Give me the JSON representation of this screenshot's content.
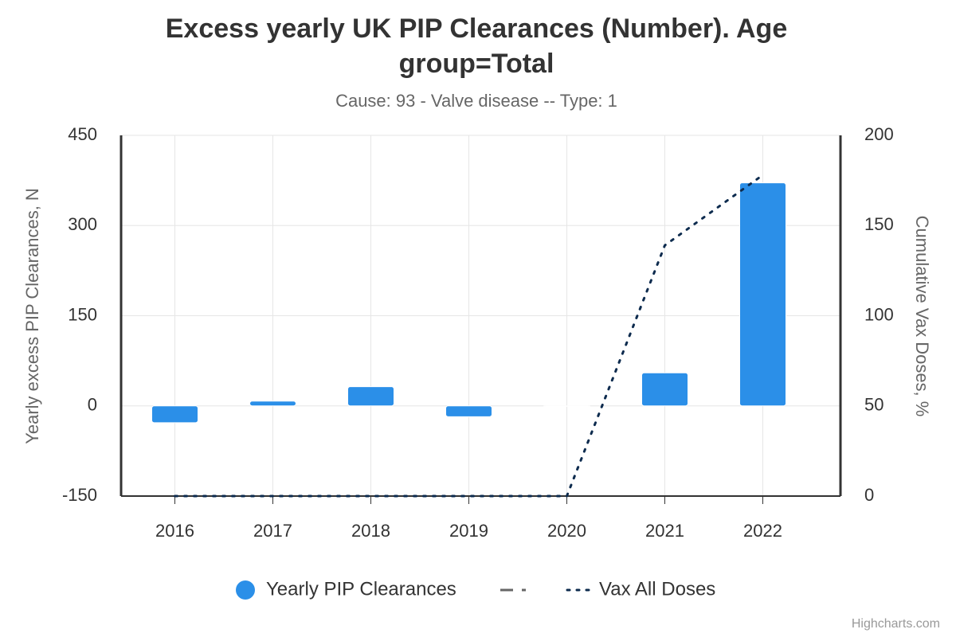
{
  "chart_data": {
    "type": "bar",
    "title": "Excess yearly UK PIP Clearances (Number). Age",
    "title_line2": "group=Total",
    "subtitle": "Cause: 93 - Valve disease -- Type: 1",
    "y_label": "Yearly excess PIP Clearances, N",
    "y2_label": "Cumulative Vax Doses, %",
    "credits": "Highcharts.com",
    "categories": [
      "2016",
      "2017",
      "2018",
      "2019",
      "2020",
      "2021",
      "2022"
    ],
    "series": [
      {
        "name": "Yearly PIP Clearances",
        "type": "bar",
        "color": "#2b8fe8",
        "values": [
          -28,
          8,
          32,
          -18,
          0,
          55,
          371
        ]
      },
      {
        "name": "Vax All Doses",
        "type": "line",
        "axis": "y2",
        "color": "#0d2b4e",
        "values": [
          0,
          0,
          0,
          0,
          0,
          139,
          178
        ]
      }
    ],
    "ylim": [
      -150,
      450
    ],
    "yticks": [
      -150,
      0,
      150,
      300,
      450
    ],
    "y2lim": [
      0,
      200
    ],
    "y2ticks": [
      0,
      50,
      100,
      150,
      200
    ],
    "grid": true
  }
}
